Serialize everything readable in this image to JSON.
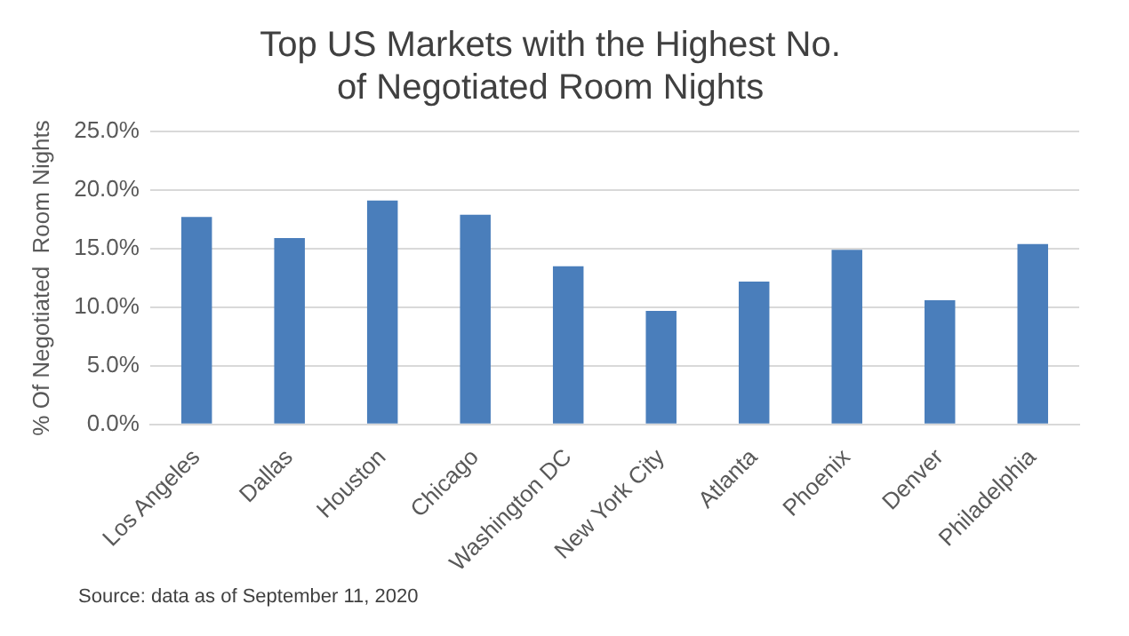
{
  "chart_data": {
    "type": "bar",
    "title": "Top US Markets with the Highest No. of Negotiated Room Nights",
    "ylabel": "% Of Negotiated  Room Nights",
    "categories": [
      "Los Angeles",
      "Dallas",
      "Houston",
      "Chicago",
      "Washington DC",
      "New York City",
      "Atlanta",
      "Phoenix",
      "Denver",
      "Philadelphia"
    ],
    "values": [
      17.7,
      15.9,
      19.1,
      17.9,
      13.5,
      9.7,
      12.2,
      14.9,
      10.6,
      15.4
    ],
    "color": "#4a7ebb",
    "ylim": [
      0,
      25
    ],
    "yticks": [
      {
        "value": 0,
        "label": "0.0%"
      },
      {
        "value": 5,
        "label": "5.0%"
      },
      {
        "value": 10,
        "label": "10.0%"
      },
      {
        "value": 15,
        "label": "15.0%"
      },
      {
        "value": 20,
        "label": "20.0%"
      },
      {
        "value": 25,
        "label": "25.0%"
      }
    ],
    "grid": "y",
    "legend": false,
    "annotations": [
      "Source: data as of September 11, 2020"
    ]
  }
}
